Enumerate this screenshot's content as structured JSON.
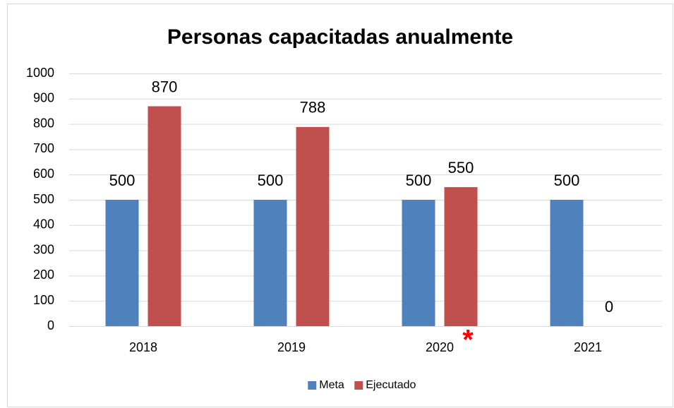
{
  "chart_data": {
    "type": "bar",
    "title": "Personas capacitadas anualmente",
    "categories": [
      "2018",
      "2019",
      "2020",
      "2021"
    ],
    "series": [
      {
        "name": "Meta",
        "color": "#4f81bd",
        "values": [
          500,
          500,
          500,
          500
        ]
      },
      {
        "name": "Ejecutado",
        "color": "#c0504d",
        "values": [
          870,
          788,
          550,
          0
        ]
      }
    ],
    "ylim": [
      0,
      1000
    ],
    "yticks": [
      0,
      100,
      200,
      300,
      400,
      500,
      600,
      700,
      800,
      900,
      1000
    ],
    "grid": true,
    "legend": "bottom",
    "annotations": [
      {
        "text": "*",
        "category": 2,
        "color": "#ff0000"
      }
    ]
  }
}
